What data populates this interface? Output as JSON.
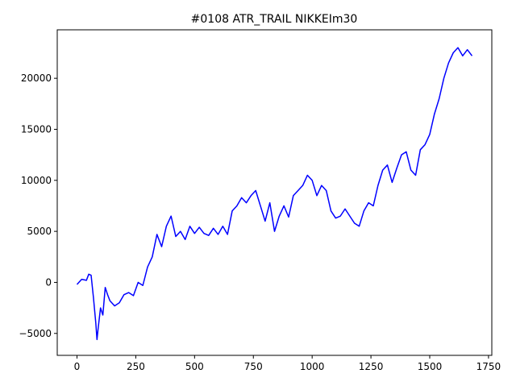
{
  "chart_data": {
    "type": "line",
    "title": "#0108 ATR_TRAIL NIKKEIm30",
    "color": "#0000ff",
    "x": [
      0,
      20,
      40,
      50,
      60,
      70,
      80,
      85,
      90,
      100,
      110,
      120,
      130,
      140,
      160,
      180,
      200,
      220,
      240,
      260,
      280,
      300,
      320,
      340,
      360,
      380,
      400,
      420,
      440,
      460,
      480,
      500,
      520,
      540,
      560,
      580,
      600,
      620,
      640,
      660,
      680,
      700,
      720,
      740,
      760,
      780,
      800,
      820,
      840,
      860,
      880,
      900,
      920,
      940,
      960,
      980,
      1000,
      1020,
      1040,
      1060,
      1080,
      1100,
      1120,
      1140,
      1160,
      1180,
      1200,
      1220,
      1240,
      1260,
      1280,
      1300,
      1320,
      1340,
      1360,
      1380,
      1400,
      1420,
      1440,
      1460,
      1480,
      1500,
      1520,
      1540,
      1560,
      1580,
      1600,
      1620,
      1640,
      1660,
      1680
    ],
    "values": [
      -200,
      300,
      200,
      800,
      700,
      -1500,
      -4000,
      -5600,
      -4500,
      -2500,
      -3200,
      -500,
      -1200,
      -1800,
      -2300,
      -2000,
      -1200,
      -1000,
      -1300,
      0,
      -300,
      1500,
      2500,
      4700,
      3500,
      5500,
      6500,
      4500,
      5000,
      4200,
      5500,
      4800,
      5400,
      4800,
      4600,
      5300,
      4700,
      5500,
      4700,
      7000,
      7500,
      8300,
      7800,
      8500,
      9000,
      7500,
      6000,
      7800,
      5000,
      6500,
      7500,
      6400,
      8500,
      9000,
      9500,
      10500,
      10000,
      8500,
      9500,
      9000,
      7000,
      6300,
      6500,
      7200,
      6500,
      5800,
      5500,
      7000,
      7800,
      7500,
      9500,
      11000,
      11500,
      9800,
      11200,
      12500,
      12800,
      11000,
      10500,
      13000,
      13500,
      14500,
      16500,
      18000,
      20000,
      21500,
      22500,
      23000,
      22200,
      22800,
      22200
    ],
    "xlim": [
      -84,
      1764
    ],
    "ylim": [
      -7150,
      24750
    ],
    "xticks": [
      0,
      250,
      500,
      750,
      1000,
      1250,
      1500,
      1750
    ],
    "yticks": [
      {
        "value": -5000,
        "label": "−5000"
      },
      0,
      5000,
      10000,
      15000,
      20000
    ]
  }
}
